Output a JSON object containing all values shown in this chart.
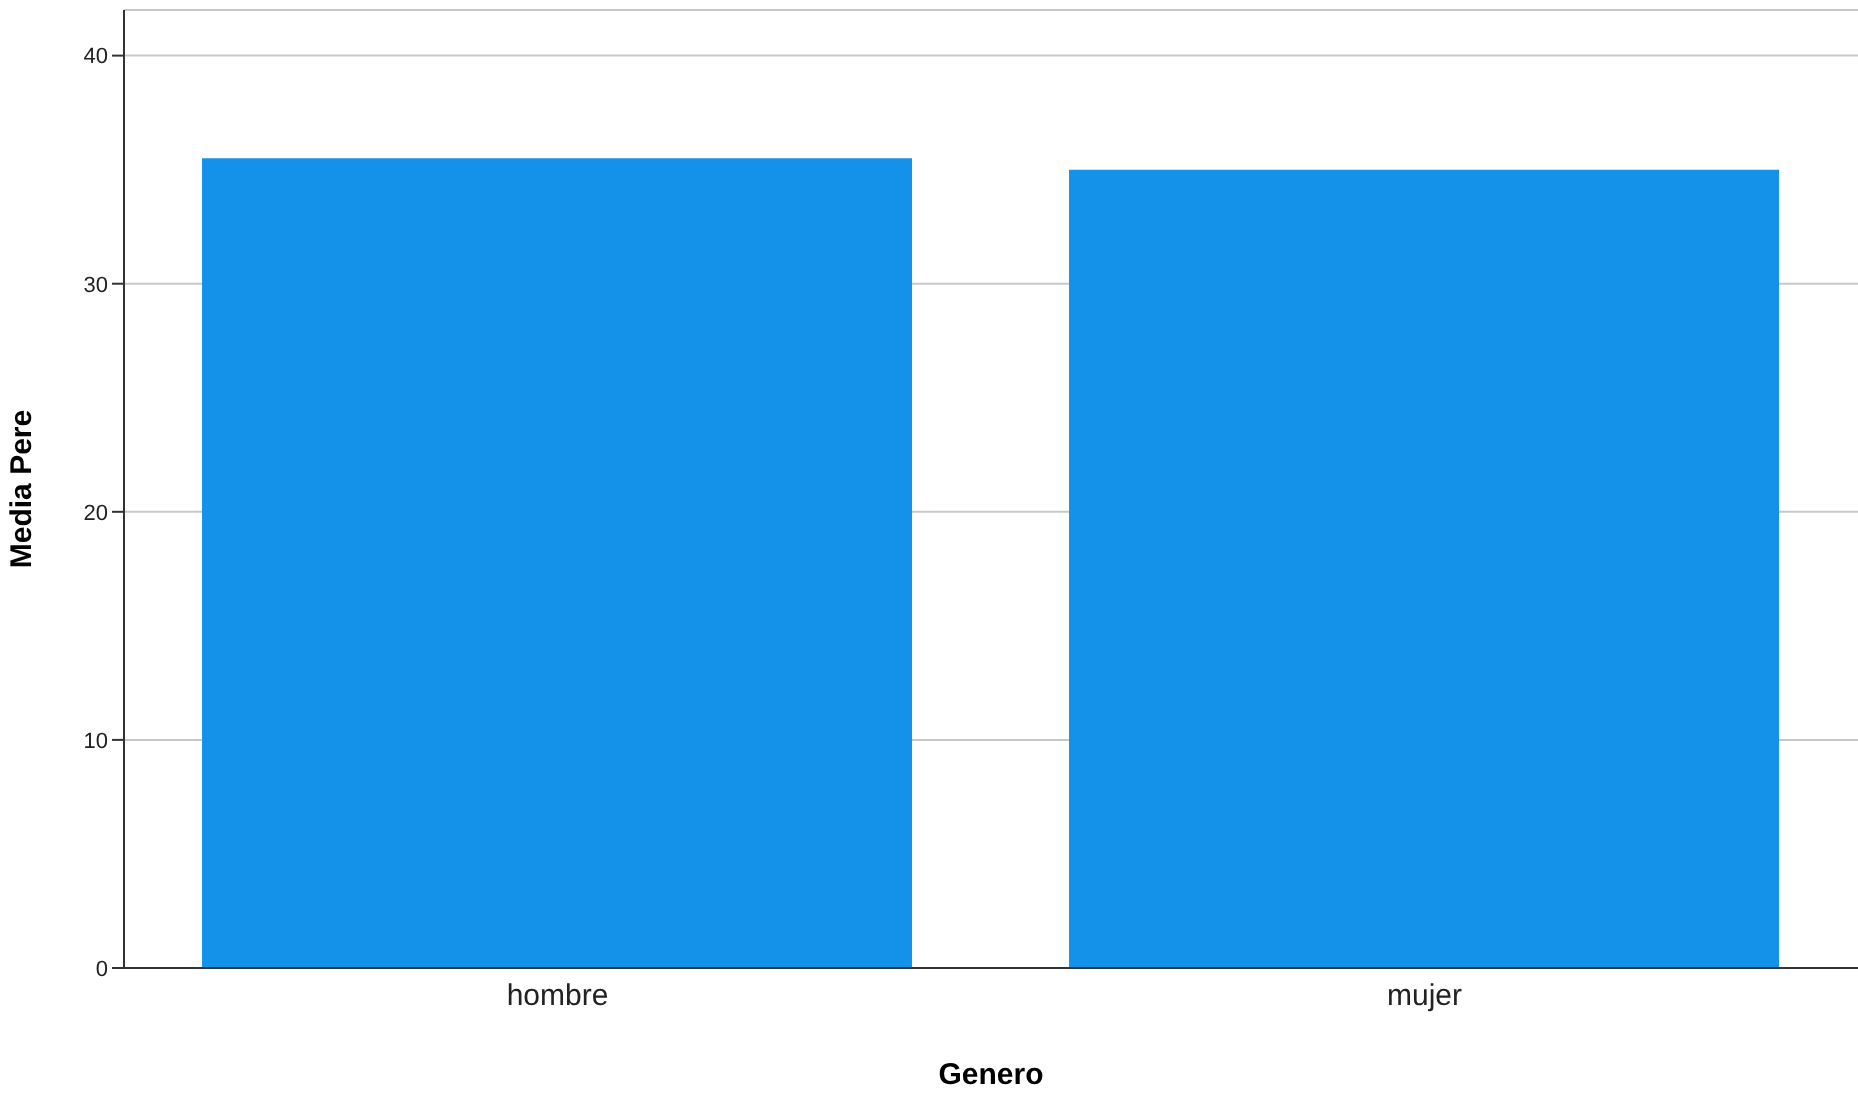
{
  "chart_data": {
    "type": "bar",
    "xlabel": "Genero",
    "ylabel": "Media Pere",
    "categories": [
      "hombre",
      "mujer"
    ],
    "values": [
      35.5,
      35.0
    ],
    "color": "#1491e8",
    "ylim": [
      0,
      42
    ],
    "yticks": [
      0,
      10,
      20,
      30,
      40
    ],
    "grid": "y"
  }
}
